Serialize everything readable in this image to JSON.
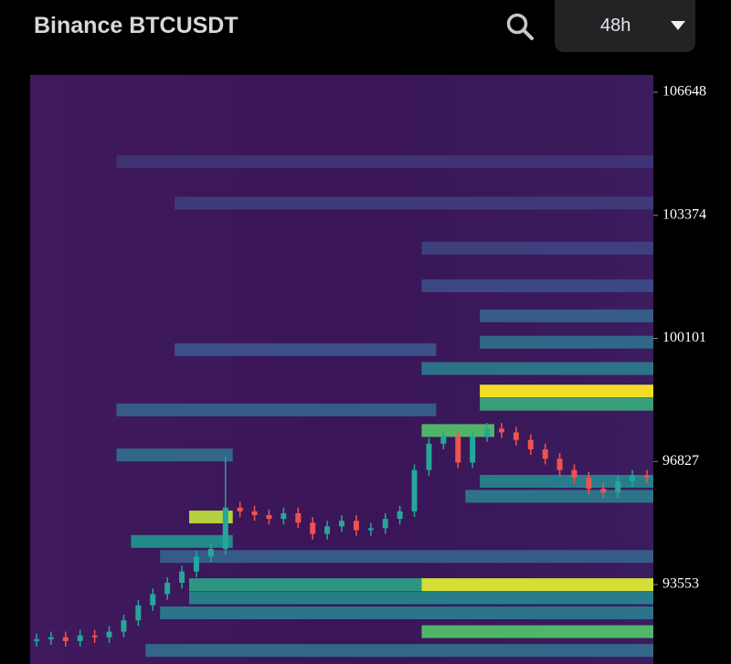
{
  "header": {
    "title": "Binance BTCUSDT",
    "timeframe": "48h"
  },
  "chart_data": {
    "type": "candlestick",
    "ylim": [
      91440,
      107110
    ],
    "yticks": [
      93553,
      96827,
      100101,
      103374,
      106648
    ],
    "up_color": "#26a69a",
    "down_color": "#ef5350",
    "open": [
      92050,
      92100,
      92150,
      92050,
      92200,
      92150,
      92300,
      92600,
      93000,
      93300,
      93600,
      93900,
      94300,
      94500,
      95600,
      95500,
      95400,
      95300,
      95450,
      95200,
      94900,
      95100,
      95250,
      95000,
      95050,
      95300,
      95500,
      96600,
      97300,
      97500,
      96800,
      97500,
      97700,
      97600,
      97400,
      97150,
      96900,
      96600,
      96400,
      96100,
      96000,
      96300,
      96450
    ],
    "close": [
      92100,
      92150,
      92050,
      92200,
      92150,
      92300,
      92600,
      93000,
      93300,
      93600,
      93900,
      94300,
      94500,
      95600,
      95500,
      95400,
      95300,
      95450,
      95200,
      94900,
      95100,
      95250,
      95000,
      95050,
      95300,
      95500,
      96600,
      97300,
      97500,
      96800,
      97500,
      97700,
      97600,
      97400,
      97150,
      96900,
      96600,
      96400,
      96100,
      96000,
      96300,
      96450,
      96400
    ],
    "high": [
      92250,
      92300,
      92300,
      92350,
      92350,
      92450,
      92750,
      93150,
      93450,
      93750,
      94050,
      94450,
      94650,
      96950,
      95750,
      95650,
      95550,
      95600,
      95600,
      95350,
      95250,
      95400,
      95400,
      95200,
      95450,
      95650,
      96750,
      97450,
      97650,
      97650,
      97650,
      97850,
      97850,
      97750,
      97550,
      97300,
      97050,
      96750,
      96550,
      96250,
      96450,
      96600,
      96600
    ],
    "low": [
      91900,
      91950,
      91900,
      91900,
      92000,
      92000,
      92150,
      92450,
      92850,
      93150,
      93450,
      93750,
      94150,
      94350,
      95350,
      95250,
      95150,
      95150,
      95050,
      94750,
      94750,
      94950,
      94850,
      94850,
      94900,
      95150,
      95350,
      96450,
      97150,
      96650,
      96650,
      97350,
      97450,
      97250,
      97000,
      96750,
      96450,
      96250,
      95950,
      95850,
      95850,
      96150,
      96250
    ],
    "heatmap": [
      {
        "price": 104800,
        "start": 6,
        "end": 42,
        "intensity": 0.12
      },
      {
        "price": 103700,
        "start": 10,
        "end": 42,
        "intensity": 0.15
      },
      {
        "price": 102500,
        "start": 27,
        "end": 42,
        "intensity": 0.18
      },
      {
        "price": 101500,
        "start": 27,
        "end": 42,
        "intensity": 0.22
      },
      {
        "price": 100700,
        "start": 31,
        "end": 42,
        "intensity": 0.3
      },
      {
        "price": 100000,
        "start": 31,
        "end": 42,
        "intensity": 0.35
      },
      {
        "price": 99800,
        "start": 10,
        "end": 27,
        "intensity": 0.25
      },
      {
        "price": 99300,
        "start": 27,
        "end": 42,
        "intensity": 0.4
      },
      {
        "price": 98350,
        "start": 31,
        "end": 42,
        "intensity": 0.6
      },
      {
        "price": 98200,
        "start": 6,
        "end": 27,
        "intensity": 0.3
      },
      {
        "price": 98700,
        "start": 31,
        "end": 42,
        "intensity": 1.0
      },
      {
        "price": 97650,
        "start": 27,
        "end": 31,
        "intensity": 0.7
      },
      {
        "price": 97000,
        "start": 6,
        "end": 13,
        "intensity": 0.35
      },
      {
        "price": 96300,
        "start": 31,
        "end": 42,
        "intensity": 0.45
      },
      {
        "price": 95900,
        "start": 30,
        "end": 42,
        "intensity": 0.4
      },
      {
        "price": 95350,
        "start": 11,
        "end": 13,
        "intensity": 0.9
      },
      {
        "price": 94700,
        "start": 7,
        "end": 13,
        "intensity": 0.5
      },
      {
        "price": 94300,
        "start": 9,
        "end": 42,
        "intensity": 0.3
      },
      {
        "price": 93550,
        "start": 11,
        "end": 42,
        "intensity": 0.55
      },
      {
        "price": 93550,
        "start": 27,
        "end": 42,
        "intensity": 0.95
      },
      {
        "price": 93200,
        "start": 11,
        "end": 42,
        "intensity": 0.45
      },
      {
        "price": 92800,
        "start": 9,
        "end": 42,
        "intensity": 0.4
      },
      {
        "price": 92300,
        "start": 27,
        "end": 42,
        "intensity": 0.7
      },
      {
        "price": 91800,
        "start": 8,
        "end": 42,
        "intensity": 0.35
      }
    ]
  }
}
